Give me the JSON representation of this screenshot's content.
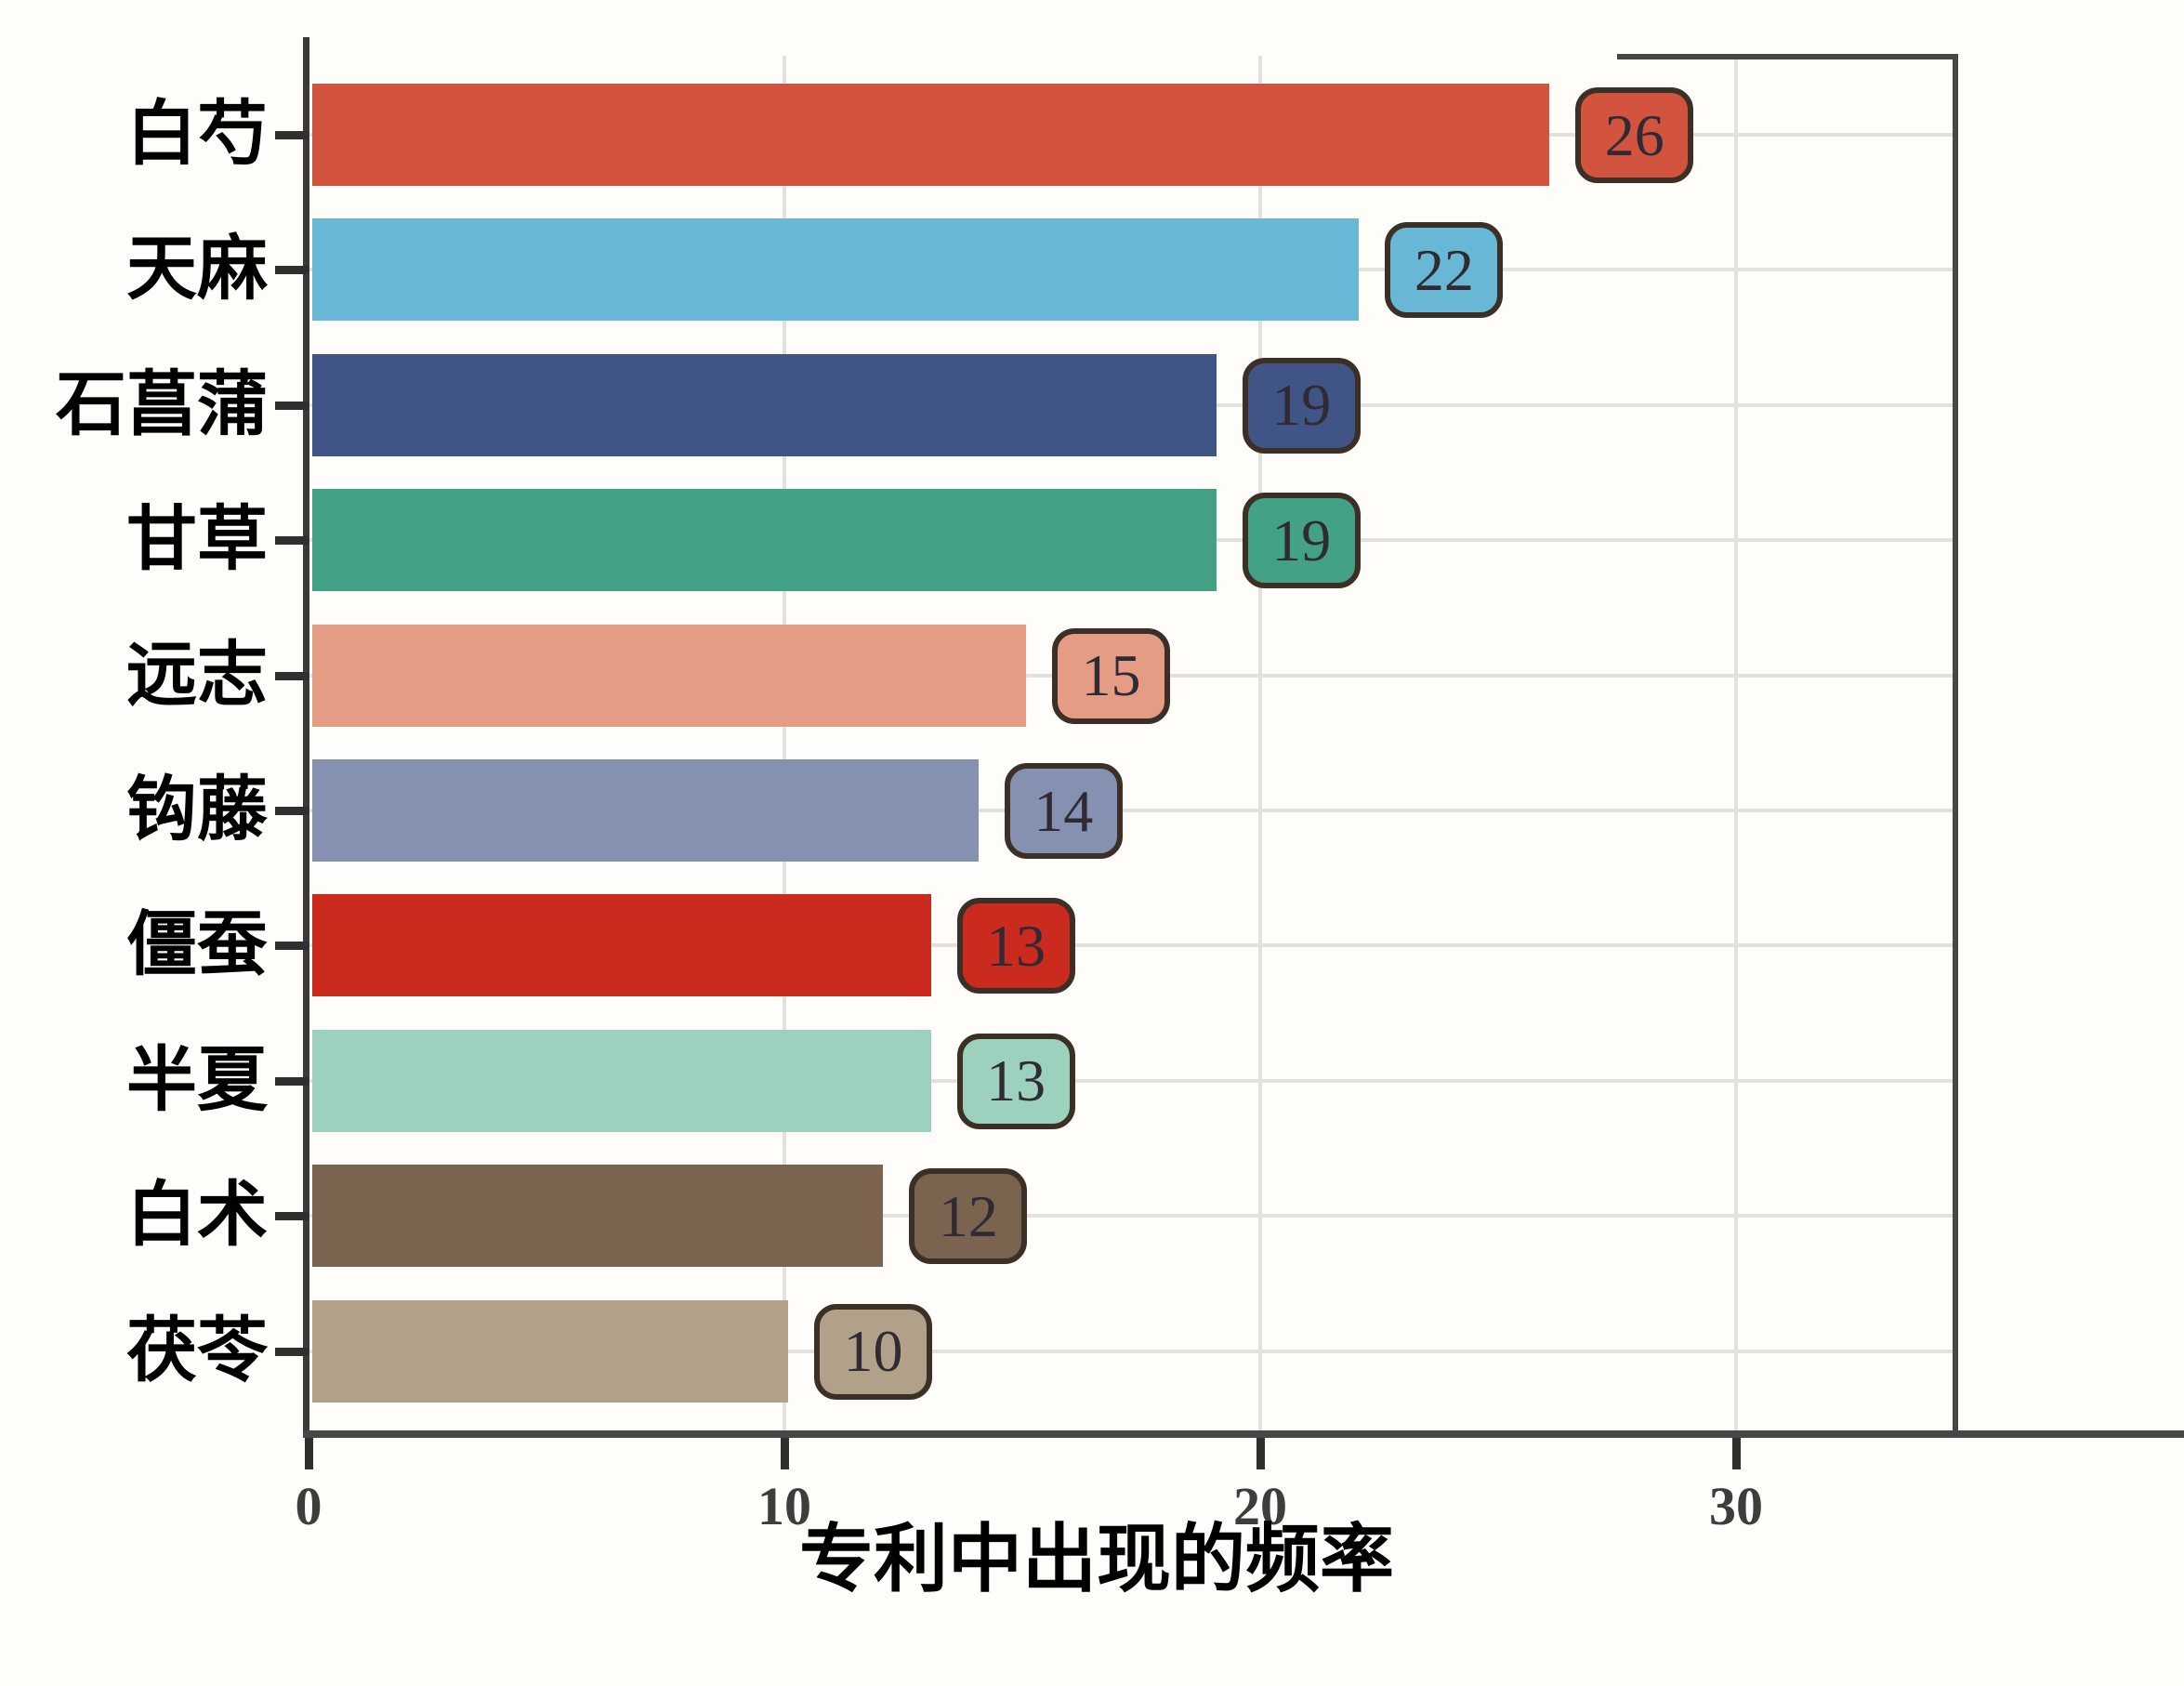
{
  "chart_data": {
    "type": "bar",
    "orientation": "horizontal",
    "title": "",
    "xlabel": "专利中出现的频率",
    "ylabel": "",
    "categories": [
      "白芍",
      "天麻",
      "石菖蒲",
      "甘草",
      "远志",
      "钩藤",
      "僵蚕",
      "半夏",
      "白术",
      "茯苓"
    ],
    "values": [
      26,
      22,
      19,
      19,
      15,
      14,
      13,
      13,
      12,
      10
    ],
    "value_labels": [
      "26",
      "22",
      "19",
      "19",
      "15",
      "14",
      "13",
      "13",
      "12",
      "10"
    ],
    "bar_colors": [
      "#d2543f",
      "#68b7d4",
      "#415486",
      "#43a185",
      "#e59c84",
      "#8591b1",
      "#cb2a1e",
      "#9cd2bd",
      "#7a6450",
      "#b1a189"
    ],
    "x_ticks": [
      0,
      10,
      20,
      30
    ],
    "x_max": 34.6,
    "grid": true,
    "legend": "none",
    "colors": {
      "axis": "#474747",
      "grid": "#e2e1dd",
      "tick": "#2f2f2f",
      "x_tick_label": "#3d3d3d",
      "category_label": "#000000",
      "badge_border": "#3b2f26",
      "badge_text": "#302a34",
      "background": "#fefdfa"
    }
  }
}
